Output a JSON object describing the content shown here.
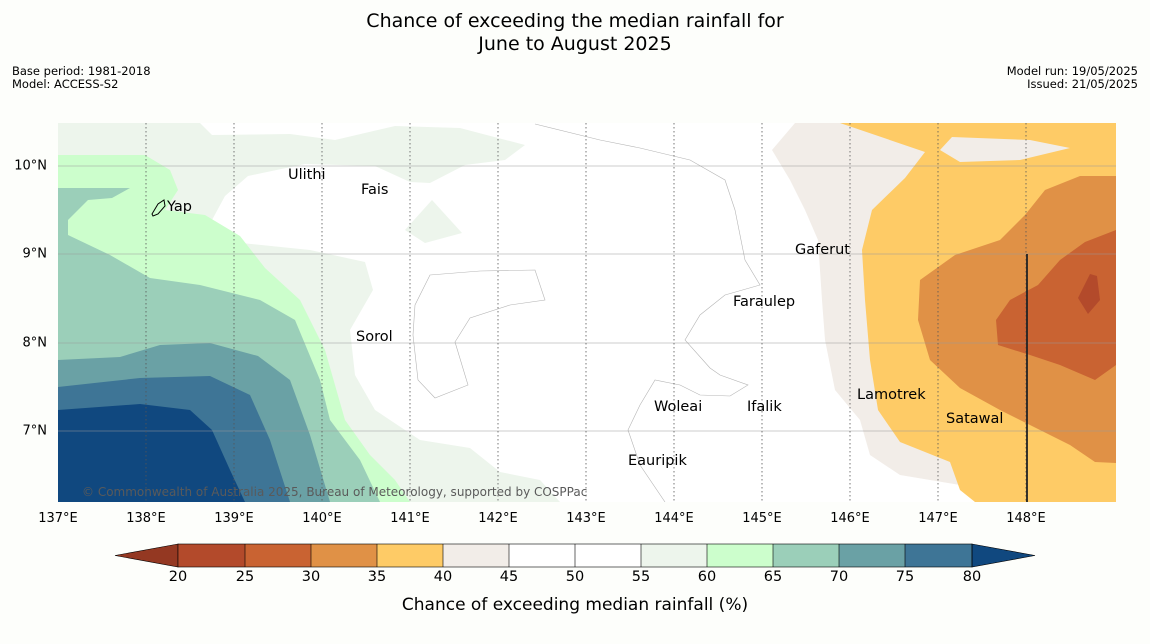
{
  "title": {
    "line1": "Chance of exceeding the median rainfall for",
    "line2": "June to August 2025"
  },
  "meta_left": {
    "base_period": "Base period: 1981-2018",
    "model": "Model: ACCESS-S2"
  },
  "meta_right": {
    "model_run": "Model run: 19/05/2025",
    "issued": "Issued: 21/05/2025"
  },
  "map": {
    "lon_range": [
      137,
      149
    ],
    "lat_range": [
      6.2,
      10.5
    ],
    "lon_ticks": [
      "137°E",
      "138°E",
      "139°E",
      "140°E",
      "141°E",
      "142°E",
      "143°E",
      "144°E",
      "145°E",
      "146°E",
      "147°E",
      "148°E"
    ],
    "lat_ticks": [
      "10°N",
      "9°N",
      "8°N",
      "7°N"
    ],
    "places": [
      {
        "name": "Ulithi",
        "lon": 139.7,
        "lat": 9.85
      },
      {
        "name": "Fais",
        "lon": 140.55,
        "lat": 9.72
      },
      {
        "name": "Yap",
        "lon": 138.15,
        "lat": 9.5
      },
      {
        "name": "Gaferut",
        "lon": 145.35,
        "lat": 9.2
      },
      {
        "name": "Faraulep",
        "lon": 144.6,
        "lat": 8.6
      },
      {
        "name": "Sorol",
        "lon": 140.35,
        "lat": 8.05
      },
      {
        "name": "Lamotrek",
        "lon": 146.05,
        "lat": 7.45
      },
      {
        "name": "Satawal",
        "lon": 147.1,
        "lat": 7.15
      },
      {
        "name": "Woleai",
        "lon": 143.9,
        "lat": 7.35
      },
      {
        "name": "Ifalik",
        "lon": 144.45,
        "lat": 7.35
      },
      {
        "name": "Eauripik",
        "lon": 143.25,
        "lat": 6.7
      }
    ],
    "copyright": "© Commonwealth of Australia 2025, Bureau of Meteorology, supported by COSPPac"
  },
  "colorbar": {
    "ticks": [
      "20",
      "25",
      "30",
      "35",
      "40",
      "45",
      "50",
      "55",
      "60",
      "65",
      "70",
      "75",
      "80"
    ],
    "colors": {
      "lt20": "#943822",
      "c20_25": "#b34a2b",
      "c25_30": "#c96332",
      "c30_35": "#e09146",
      "c35_40": "#fecb66",
      "c40_45": "#f2ede8",
      "c45_55": "#ffffff",
      "c55_60": "#edf5ec",
      "c60_65": "#ccfecc",
      "c65_70": "#9bcfb9",
      "c70_75": "#6aa1a5",
      "c75_80": "#3e7596",
      "gt80": "#10487f"
    },
    "label": "Chance of exceeding median rainfall (%)"
  }
}
